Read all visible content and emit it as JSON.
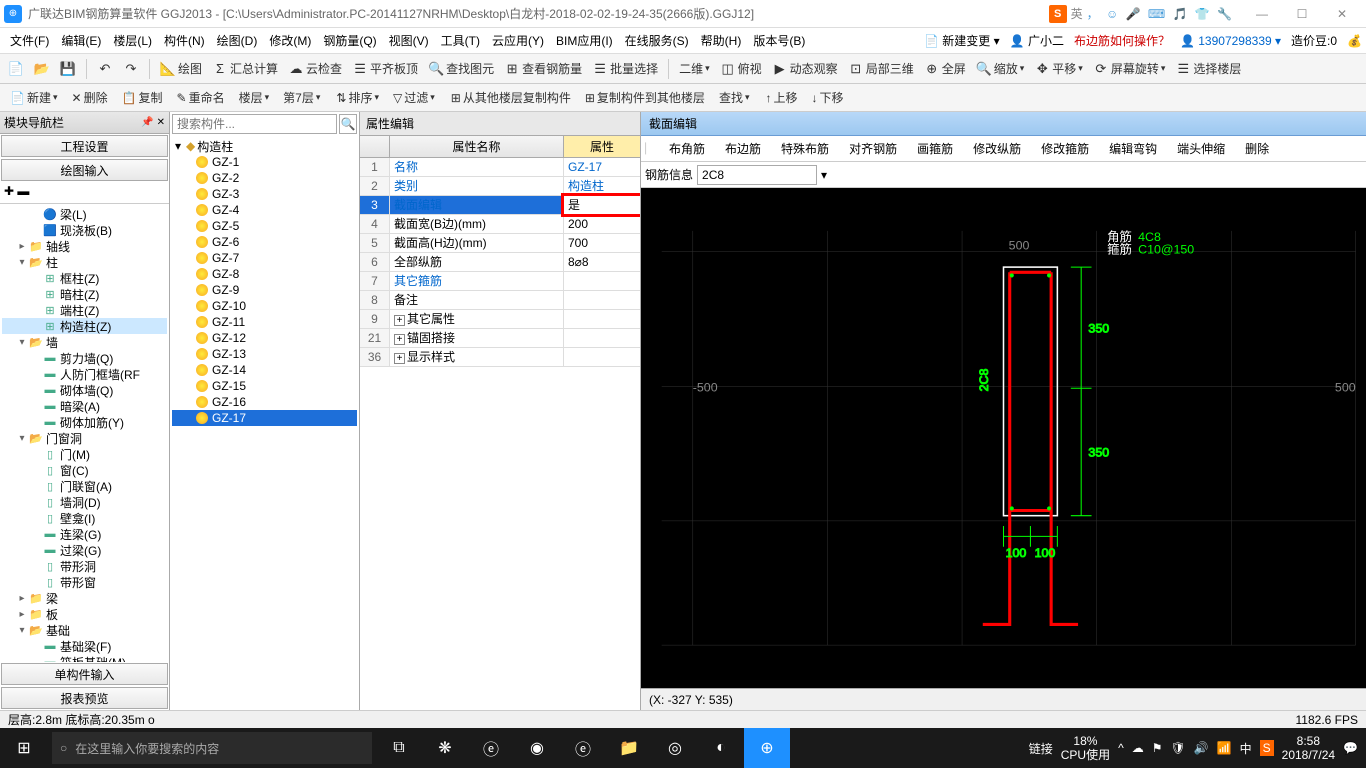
{
  "title": "广联达BIM钢筋算量软件 GGJ2013 - [C:\\Users\\Administrator.PC-20141127NRHM\\Desktop\\白龙村-2018-02-02-19-24-35(2666版).GGJ12]",
  "ime": {
    "label": "英",
    "icons": "， ☺ 🎤 ⌨ 🎵 👕 🔧"
  },
  "winbtns": [
    "—",
    "☐",
    "✕"
  ],
  "menu": [
    "文件(F)",
    "编辑(E)",
    "楼层(L)",
    "构件(N)",
    "绘图(D)",
    "修改(M)",
    "钢筋量(Q)",
    "视图(V)",
    "工具(T)",
    "云应用(Y)",
    "BIM应用(I)",
    "在线服务(S)",
    "帮助(H)",
    "版本号(B)"
  ],
  "menuRight": {
    "new": "新建变更",
    "user": "广小二",
    "help": "布边筋如何操作？",
    "acct": "13907298339",
    "coin": "造价豆:0"
  },
  "tb1": [
    {
      "i": "📄",
      "t": ""
    },
    {
      "i": "📂",
      "t": ""
    },
    {
      "i": "💾",
      "t": ""
    },
    {
      "i": "",
      "sep": true
    },
    {
      "i": "↶",
      "t": ""
    },
    {
      "i": "↷",
      "t": ""
    },
    {
      "i": "",
      "sep": true
    },
    {
      "i": "📐",
      "t": "绘图"
    },
    {
      "i": "Σ",
      "t": "汇总计算"
    },
    {
      "i": "☁",
      "t": "云检查"
    },
    {
      "i": "☰",
      "t": "平齐板顶"
    },
    {
      "i": "🔍",
      "t": "查找图元"
    },
    {
      "i": "⊞",
      "t": "查看钢筋量"
    },
    {
      "i": "☰",
      "t": "批量选择"
    },
    {
      "i": "",
      "sep": true
    },
    {
      "i": "",
      "t": "二维",
      "dd": true
    },
    {
      "i": "◫",
      "t": "俯视"
    },
    {
      "i": "▶",
      "t": "动态观察"
    },
    {
      "i": "⊡",
      "t": "局部三维"
    },
    {
      "i": "⊕",
      "t": "全屏"
    },
    {
      "i": "🔍",
      "t": "缩放",
      "dd": true
    },
    {
      "i": "✥",
      "t": "平移",
      "dd": true
    },
    {
      "i": "⟳",
      "t": "屏幕旋转",
      "dd": true
    },
    {
      "i": "☰",
      "t": "选择楼层"
    }
  ],
  "tb2": [
    {
      "i": "📄",
      "t": "新建",
      "dd": true
    },
    {
      "i": "✕",
      "t": "删除"
    },
    {
      "i": "📋",
      "t": "复制"
    },
    {
      "i": "✎",
      "t": "重命名"
    },
    {
      "t": "楼层",
      "dd": true
    },
    {
      "t": "第7层",
      "dd": true
    },
    {
      "i": "",
      "sep": true
    },
    {
      "i": "⇅",
      "t": "排序",
      "dd": true
    },
    {
      "i": "▽",
      "t": "过滤",
      "dd": true
    },
    {
      "i": "",
      "sep": true
    },
    {
      "i": "⊞",
      "t": "从其他楼层复制构件"
    },
    {
      "i": "⊞",
      "t": "复制构件到其他楼层"
    },
    {
      "t": "查找",
      "dd": true
    },
    {
      "i": "",
      "sep": true
    },
    {
      "i": "↑",
      "t": "上移"
    },
    {
      "i": "↓",
      "t": "下移"
    }
  ],
  "nav": {
    "title": "模块导航栏",
    "btns": [
      "工程设置",
      "绘图输入"
    ],
    "tree": [
      {
        "l": "梁(L)",
        "d": 2,
        "i": "🔵"
      },
      {
        "l": "现浇板(B)",
        "d": 2,
        "i": "🟦"
      },
      {
        "l": "轴线",
        "d": 1,
        "i": "📁",
        "exp": "▸"
      },
      {
        "l": "柱",
        "d": 1,
        "i": "📂",
        "exp": "▾"
      },
      {
        "l": "框柱(Z)",
        "d": 2,
        "i": "⊞"
      },
      {
        "l": "暗柱(Z)",
        "d": 2,
        "i": "⊞"
      },
      {
        "l": "端柱(Z)",
        "d": 2,
        "i": "⊞"
      },
      {
        "l": "构造柱(Z)",
        "d": 2,
        "i": "⊞",
        "sel": true
      },
      {
        "l": "墙",
        "d": 1,
        "i": "📂",
        "exp": "▾"
      },
      {
        "l": "剪力墙(Q)",
        "d": 2,
        "i": "▬"
      },
      {
        "l": "人防门框墙(RF",
        "d": 2,
        "i": "▬"
      },
      {
        "l": "砌体墙(Q)",
        "d": 2,
        "i": "▬"
      },
      {
        "l": "暗梁(A)",
        "d": 2,
        "i": "▬"
      },
      {
        "l": "砌体加筋(Y)",
        "d": 2,
        "i": "▬"
      },
      {
        "l": "门窗洞",
        "d": 1,
        "i": "📂",
        "exp": "▾"
      },
      {
        "l": "门(M)",
        "d": 2,
        "i": "▯"
      },
      {
        "l": "窗(C)",
        "d": 2,
        "i": "▯"
      },
      {
        "l": "门联窗(A)",
        "d": 2,
        "i": "▯"
      },
      {
        "l": "墙洞(D)",
        "d": 2,
        "i": "▯"
      },
      {
        "l": "壁龛(I)",
        "d": 2,
        "i": "▯"
      },
      {
        "l": "连梁(G)",
        "d": 2,
        "i": "▬"
      },
      {
        "l": "过梁(G)",
        "d": 2,
        "i": "▬"
      },
      {
        "l": "带形洞",
        "d": 2,
        "i": "▯"
      },
      {
        "l": "带形窗",
        "d": 2,
        "i": "▯"
      },
      {
        "l": "梁",
        "d": 1,
        "i": "📁",
        "exp": "▸"
      },
      {
        "l": "板",
        "d": 1,
        "i": "📁",
        "exp": "▸"
      },
      {
        "l": "基础",
        "d": 1,
        "i": "📂",
        "exp": "▾"
      },
      {
        "l": "基础梁(F)",
        "d": 2,
        "i": "▬"
      },
      {
        "l": "筏板基础(M)",
        "d": 2,
        "i": "▬"
      }
    ],
    "bottom": [
      "单构件输入",
      "报表预览"
    ]
  },
  "search": {
    "ph": "搜索构件..."
  },
  "gz": {
    "root": "构造柱",
    "items": [
      "GZ-1",
      "GZ-2",
      "GZ-3",
      "GZ-4",
      "GZ-5",
      "GZ-6",
      "GZ-7",
      "GZ-8",
      "GZ-9",
      "GZ-10",
      "GZ-11",
      "GZ-12",
      "GZ-13",
      "GZ-14",
      "GZ-15",
      "GZ-16",
      "GZ-17"
    ],
    "sel": 16
  },
  "prop": {
    "title": "属性编辑",
    "h1": "属性名称",
    "h2": "属性",
    "rows": [
      {
        "n": "1",
        "k": "名称",
        "v": "GZ-17",
        "blue": true
      },
      {
        "n": "2",
        "k": "类别",
        "v": "构造柱",
        "blue": true
      },
      {
        "n": "3",
        "k": "截面编辑",
        "v": "是",
        "blue": true,
        "hl": true
      },
      {
        "n": "4",
        "k": "截面宽(B边)(mm)",
        "v": "200"
      },
      {
        "n": "5",
        "k": "截面高(H边)(mm)",
        "v": "700"
      },
      {
        "n": "6",
        "k": "全部纵筋",
        "v": "8⌀8"
      },
      {
        "n": "7",
        "k": "其它箍筋",
        "v": "",
        "blue": true
      },
      {
        "n": "8",
        "k": "备注",
        "v": ""
      },
      {
        "n": "9",
        "k": "其它属性",
        "v": "",
        "plus": true
      },
      {
        "n": "21",
        "k": "锚固搭接",
        "v": "",
        "plus": true
      },
      {
        "n": "36",
        "k": "显示样式",
        "v": "",
        "plus": true
      }
    ]
  },
  "section": {
    "title": "截面编辑",
    "tools": [
      "布角筋",
      "布边筋",
      "特殊布筋",
      "对齐钢筋",
      "画箍筋",
      "修改纵筋",
      "修改箍筋",
      "编辑弯钩",
      "端头伸缩",
      "删除"
    ],
    "label": "钢筋信息",
    "value": "2C8",
    "coord": "(X: -327 Y: 535)",
    "drawing": {
      "bg": "#000000",
      "grid": "#333333",
      "outline": "#ffffff",
      "shape": "#ff0000",
      "dim_color": "#00ff00",
      "text1": {
        "label": "角筋",
        "color": "#ffffff"
      },
      "text2": {
        "label": "箍筋",
        "color": "#ffffff"
      },
      "text3": {
        "label": "4C8",
        "color": "#00ff00"
      },
      "text4": {
        "label": "C10@150",
        "color": "#00ff00"
      },
      "dim_v1": "350",
      "dim_v2": "350",
      "dim_h1": "100",
      "dim_h2": "100",
      "label_2c8": "2C8",
      "axis": [
        "-500",
        "500",
        "-500",
        "500"
      ]
    }
  },
  "status": {
    "l": "层高:2.8m    底标高:20.35m   o",
    "r": "1182.6 FPS"
  },
  "taskbar": {
    "search": "在这里输入你要搜索的内容",
    "tray": {
      "link": "链接",
      "cpu1": "18%",
      "cpu2": "CPU使用",
      "ime": "中",
      "time": "8:58",
      "date": "2018/7/24"
    }
  }
}
